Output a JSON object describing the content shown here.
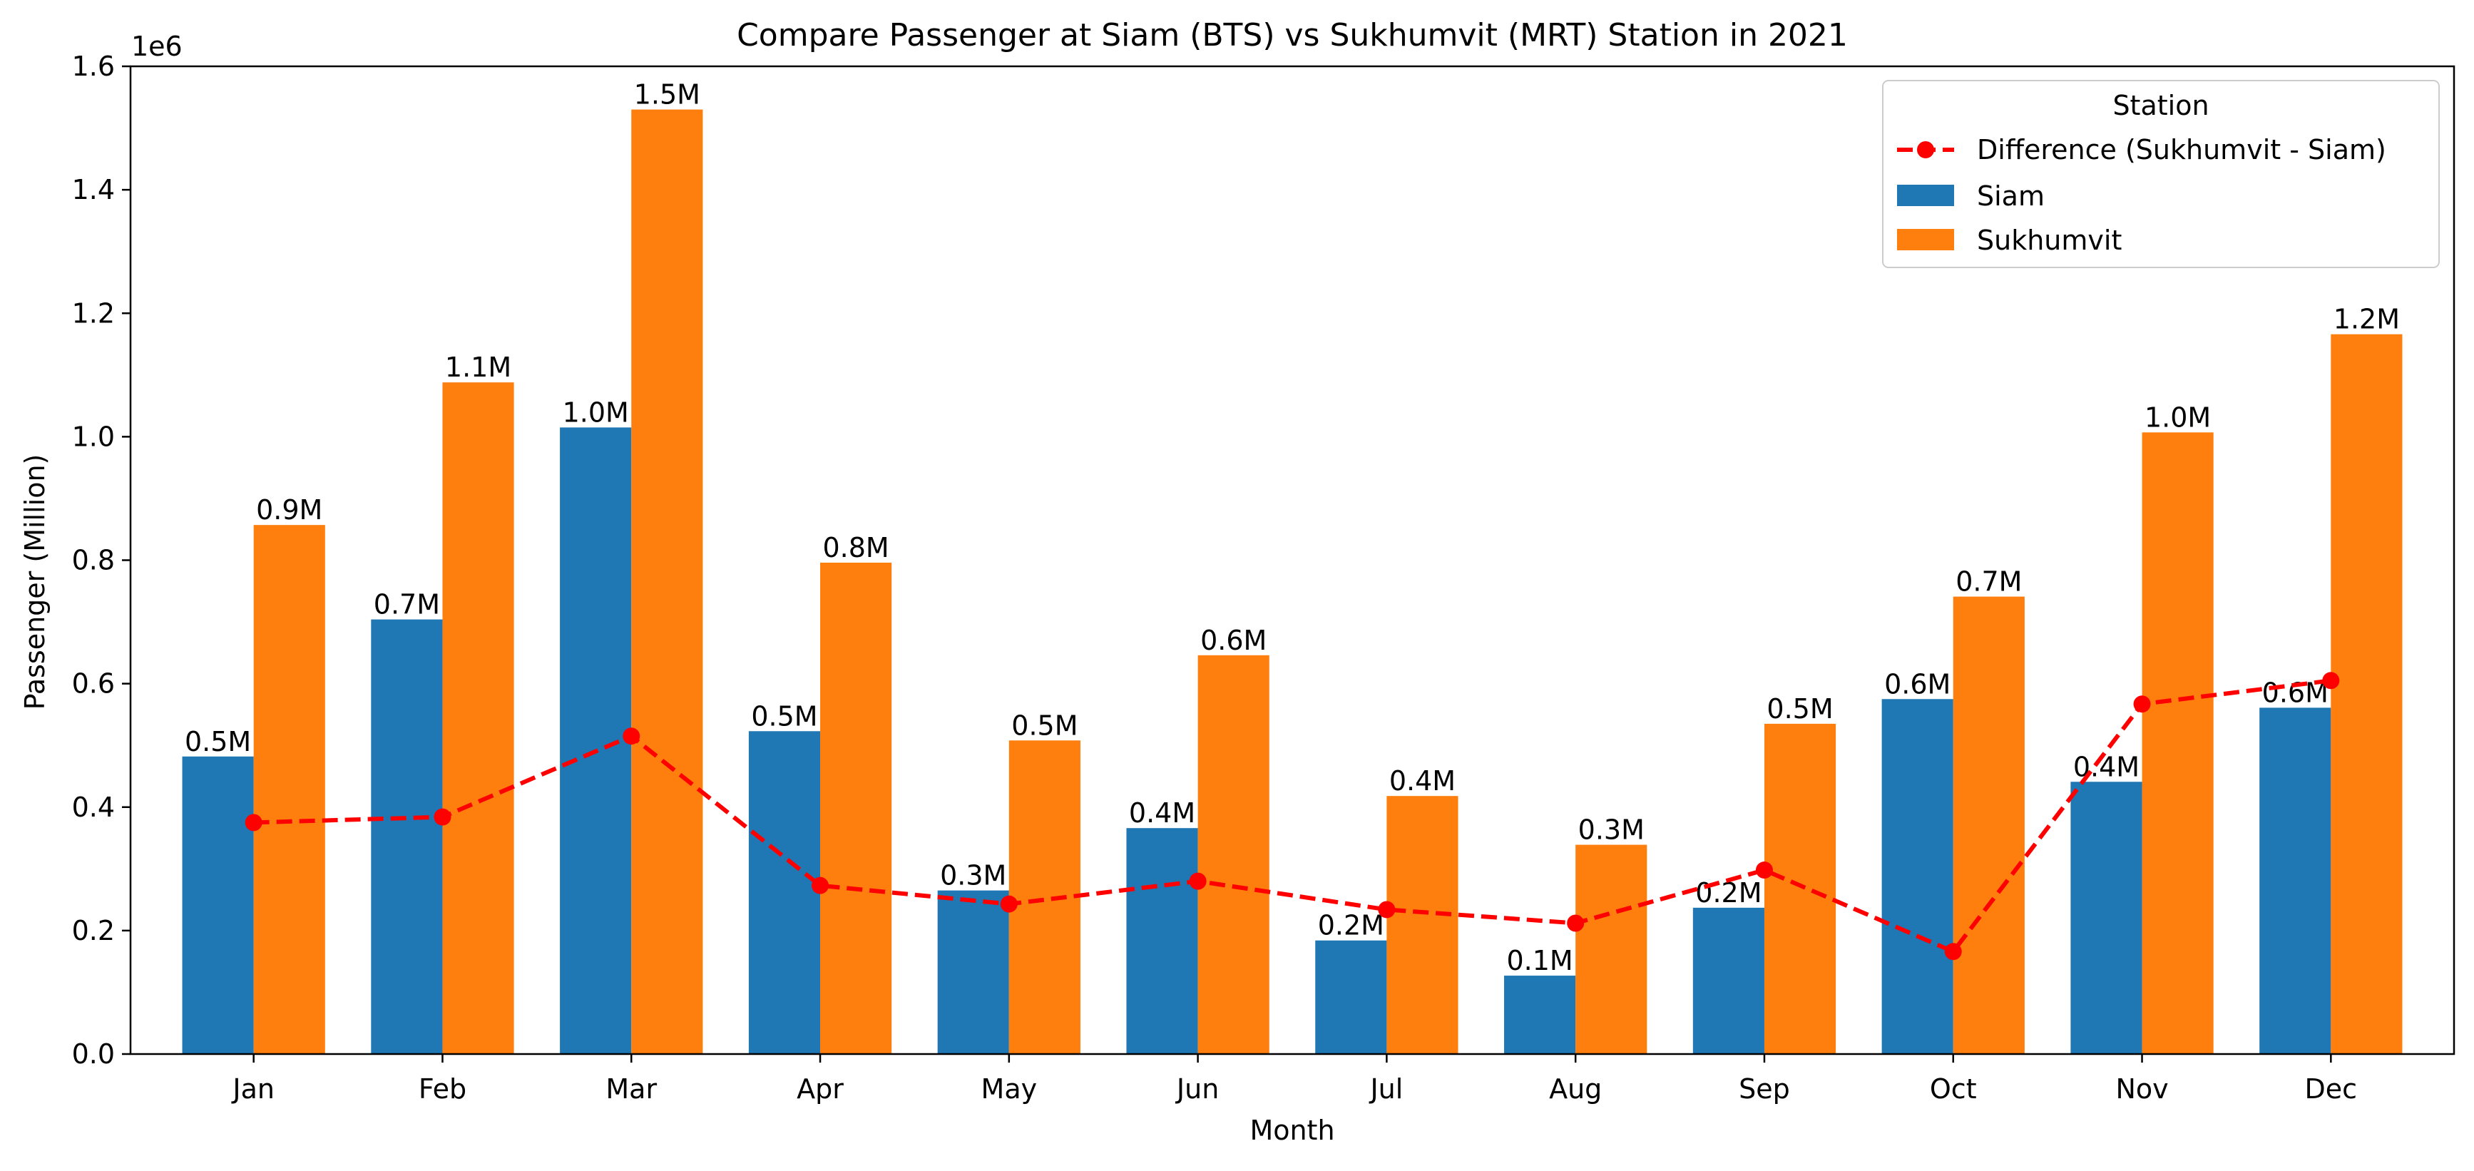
{
  "chart_data": {
    "type": "bar",
    "title": "Compare Passenger at Siam (BTS) vs Sukhumvit (MRT) Station in 2021",
    "xlabel": "Month",
    "ylabel": "Passenger (Million)",
    "y_offset_label": "1e6",
    "ylim": [
      0,
      1600000
    ],
    "yticks": [
      0,
      200000,
      400000,
      600000,
      800000,
      1000000,
      1200000,
      1400000,
      1600000
    ],
    "ytick_labels": [
      "0.0",
      "0.2",
      "0.4",
      "0.6",
      "0.8",
      "1.0",
      "1.2",
      "1.4",
      "1.6"
    ],
    "categories": [
      "Jan",
      "Feb",
      "Mar",
      "Apr",
      "May",
      "Jun",
      "Jul",
      "Aug",
      "Sep",
      "Oct",
      "Nov",
      "Dec"
    ],
    "grid": false,
    "legend": {
      "title": "Station",
      "placement": "top-right",
      "entries": [
        "Difference (Sukhumvit - Siam)",
        "Siam",
        "Sukhumvit"
      ]
    },
    "series": [
      {
        "name": "Siam",
        "type": "bar",
        "color": "#1f77b4",
        "values": [
          482000,
          704000,
          1015000,
          523000,
          265000,
          366000,
          184000,
          127000,
          237000,
          575000,
          441000,
          561000
        ],
        "data_labels": [
          "0.5M",
          "0.7M",
          "1.0M",
          "0.5M",
          "0.3M",
          "0.4M",
          "0.2M",
          "0.1M",
          "0.2M",
          "0.6M",
          "0.4M",
          "0.6M"
        ]
      },
      {
        "name": "Sukhumvit",
        "type": "bar",
        "color": "#ff7f0e",
        "values": [
          857000,
          1088000,
          1530000,
          796000,
          508000,
          646000,
          418000,
          339000,
          535000,
          741000,
          1007000,
          1166000
        ],
        "data_labels": [
          "0.9M",
          "1.1M",
          "1.5M",
          "0.8M",
          "0.5M",
          "0.6M",
          "0.4M",
          "0.3M",
          "0.5M",
          "0.7M",
          "1.0M",
          "1.2M"
        ]
      },
      {
        "name": "Difference (Sukhumvit - Siam)",
        "type": "line",
        "color": "#ff0000",
        "style": "dashed",
        "marker": "circle",
        "values": [
          375000,
          384000,
          515000,
          273000,
          243000,
          280000,
          234000,
          212000,
          298000,
          166000,
          567000,
          605000
        ]
      }
    ]
  }
}
